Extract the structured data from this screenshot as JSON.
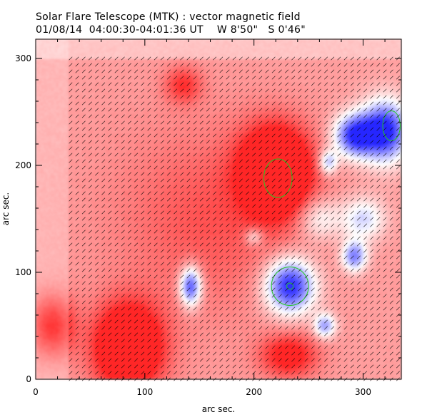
{
  "title": "Solar Flare Telescope (MTK) : vector magnetic field",
  "subtitle": {
    "date": "01/08/14",
    "time_range": "04:00:30-04:01:36 UT",
    "position_w": "W 8'50\"",
    "position_s": "S 0'46\""
  },
  "axes": {
    "xlabel": "arc sec.",
    "ylabel": "arc sec.",
    "xlim": [
      0,
      335
    ],
    "ylim": [
      0,
      318
    ],
    "x_ticks": [
      "0",
      "100",
      "200",
      "300"
    ],
    "y_ticks": [
      "0",
      "100",
      "200",
      "300"
    ]
  },
  "colors": {
    "positive_polarity": "#ff2828",
    "negative_polarity": "#2828ff",
    "background_field": "#ffffff",
    "contour": "#22cc22",
    "vector": "#000000"
  },
  "chart_data": {
    "type": "heatmap",
    "description_field": "line-of-sight field (red = positive, blue = negative) with transverse field vectors",
    "blobs": [
      {
        "x": 220,
        "y": 195,
        "sign": 1,
        "strength": 1.0,
        "sx": 22,
        "sy": 28
      },
      {
        "x": 85,
        "y": 30,
        "sign": 1,
        "strength": 0.9,
        "sx": 22,
        "sy": 28
      },
      {
        "x": 15,
        "y": 50,
        "sign": 1,
        "strength": 0.55,
        "sx": 14,
        "sy": 20
      },
      {
        "x": 135,
        "y": 275,
        "sign": 1,
        "strength": 0.35,
        "sx": 12,
        "sy": 12
      },
      {
        "x": 232,
        "y": 22,
        "sign": 1,
        "strength": 0.5,
        "sx": 18,
        "sy": 14
      },
      {
        "x": 160,
        "y": 150,
        "sign": 1,
        "strength": 0.25,
        "sx": 60,
        "sy": 60
      },
      {
        "x": 233,
        "y": 87,
        "sign": -1,
        "strength": 1.0,
        "sx": 16,
        "sy": 18
      },
      {
        "x": 320,
        "y": 232,
        "sign": -1,
        "strength": 1.0,
        "sx": 15,
        "sy": 20
      },
      {
        "x": 292,
        "y": 228,
        "sign": -1,
        "strength": 0.9,
        "sx": 13,
        "sy": 14
      },
      {
        "x": 142,
        "y": 87,
        "sign": -1,
        "strength": 0.9,
        "sx": 7,
        "sy": 13
      },
      {
        "x": 292,
        "y": 115,
        "sign": -1,
        "strength": 0.7,
        "sx": 8,
        "sy": 10
      },
      {
        "x": 265,
        "y": 50,
        "sign": -1,
        "strength": 0.6,
        "sx": 7,
        "sy": 8
      },
      {
        "x": 268,
        "y": 203,
        "sign": -1,
        "strength": 0.55,
        "sx": 6,
        "sy": 8
      },
      {
        "x": 200,
        "y": 133,
        "sign": -1,
        "strength": 0.35,
        "sx": 6,
        "sy": 6
      },
      {
        "x": 300,
        "y": 150,
        "sign": -1,
        "strength": 0.45,
        "sx": 14,
        "sy": 14
      },
      {
        "x": 260,
        "y": 150,
        "sign": -1,
        "strength": 0.35,
        "sx": 14,
        "sy": 14
      }
    ],
    "contours": [
      {
        "x": 222,
        "y": 188,
        "rx": 13,
        "ry": 18
      },
      {
        "x": 233,
        "y": 87,
        "rx": 17,
        "ry": 18
      },
      {
        "x": 233,
        "y": 87,
        "rx": 3,
        "ry": 3
      },
      {
        "x": 326,
        "y": 237,
        "rx": 8,
        "ry": 14
      }
    ],
    "vectors": {
      "x_start": 32,
      "x_end": 335,
      "y_start": 0,
      "y_end": 300,
      "spacing": 6,
      "angle_deg": 45
    }
  }
}
